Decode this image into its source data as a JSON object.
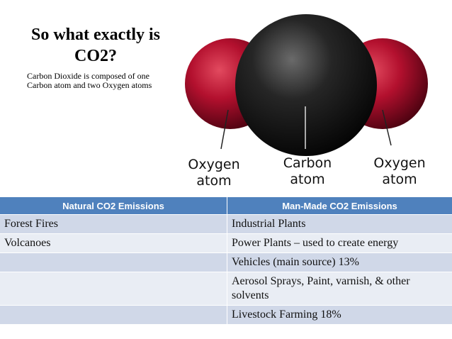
{
  "slide": {
    "title_line1": "So what exactly is",
    "title_line2": "CO2?",
    "subtitle_line1": "Carbon Dioxide is composed of one",
    "subtitle_line2": "Carbon atom and two Oxygen atoms"
  },
  "molecule": {
    "labels": [
      {
        "line1": "Oxygen",
        "line2": "atom"
      },
      {
        "line1": "Carbon",
        "line2": "atom"
      },
      {
        "line1": "Oxygen",
        "line2": "atom"
      }
    ],
    "colors": {
      "oxygen": "#b3102e",
      "carbon": "#1a1a1a"
    }
  },
  "table": {
    "headers": [
      "Natural CO2 Emissions",
      "Man-Made CO2 Emissions"
    ],
    "rows": [
      [
        "Forest Fires",
        "Industrial Plants"
      ],
      [
        "Volcanoes",
        "Power Plants – used to create energy"
      ],
      [
        "",
        "Vehicles (main source) 13%"
      ],
      [
        "",
        "Aerosol Sprays, Paint, varnish, & other solvents"
      ],
      [
        "",
        "Livestock Farming 18%"
      ]
    ],
    "colors": {
      "header": "#4f81bd",
      "row_odd": "#d0d8e8",
      "row_even": "#e9edf4"
    }
  }
}
